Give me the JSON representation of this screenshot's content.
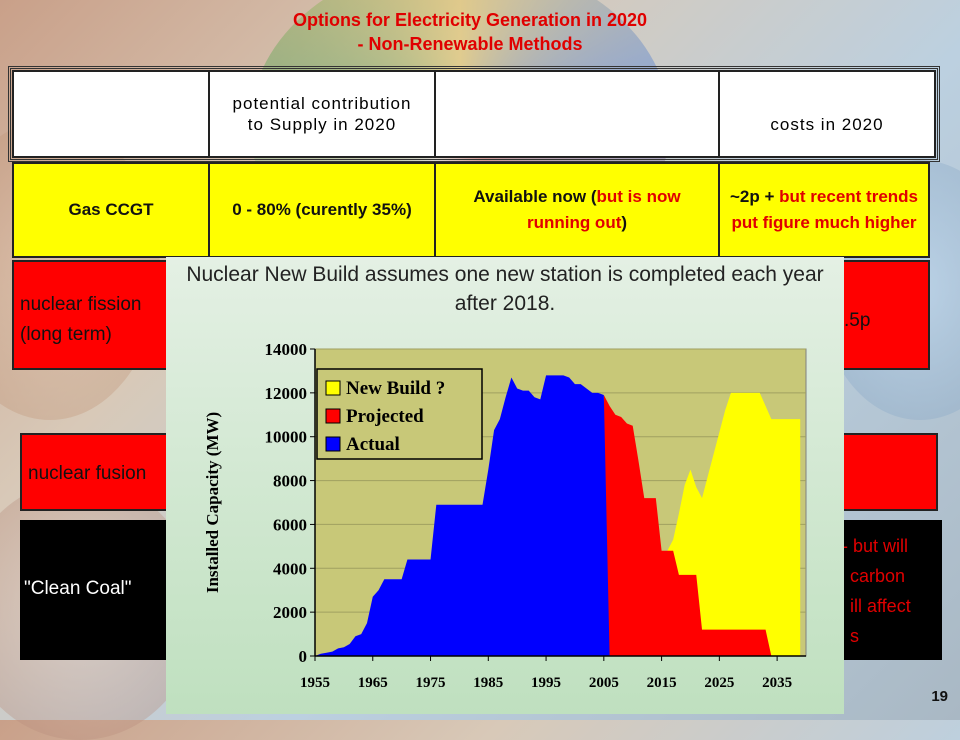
{
  "slide": {
    "title_line1": "Options for Electricity Generation in 2020",
    "title_line2": "- Non-Renewable Methods",
    "page_number": "19"
  },
  "table": {
    "header_col2": "potential contribution to Supply in 2020",
    "header_col4": "costs in 2020",
    "gas": {
      "label": "Gas CCGT",
      "contribution": "0 - 80% (curently 35%)",
      "availability_a": "Available now (",
      "availability_b": "but is now running out",
      "availability_c": ")",
      "cost_a": "~2p + ",
      "cost_b": "but recent trends put figure much higher"
    },
    "fission": {
      "label_1": "nuclear fission",
      "label_2": "(long term)",
      "cost_fragment": ".5p"
    },
    "fusion": {
      "label": "nuclear fusion"
    },
    "coal": {
      "label": "\"Clean Coal\"",
      "note_1": "- but will",
      "note_2": "carbon",
      "note_3": "ill affect",
      "note_4": "s"
    }
  },
  "overlay": {
    "caption": "Nuclear New Build assumes one new station is completed each year after 2018."
  },
  "chart_data": {
    "type": "area",
    "title": "",
    "xlabel": "",
    "ylabel": "Installed Capacity (MW)",
    "xlim": [
      1955,
      2040
    ],
    "ylim": [
      0,
      14000
    ],
    "x_ticks": [
      1955,
      1965,
      1975,
      1985,
      1995,
      2005,
      2015,
      2025,
      2035
    ],
    "y_ticks": [
      0,
      2000,
      4000,
      6000,
      8000,
      10000,
      12000,
      14000
    ],
    "legend_position": "top-left",
    "series": [
      {
        "name": "New Build ?",
        "color": "#ffff00",
        "points": [
          [
            2016,
            4800
          ],
          [
            2017,
            5300
          ],
          [
            2018,
            6500
          ],
          [
            2019,
            7800
          ],
          [
            2020,
            8500
          ],
          [
            2021,
            7700
          ],
          [
            2022,
            7200
          ],
          [
            2023,
            8200
          ],
          [
            2024,
            9200
          ],
          [
            2025,
            10200
          ],
          [
            2026,
            11200
          ],
          [
            2027,
            12000
          ],
          [
            2028,
            12000
          ],
          [
            2029,
            12000
          ],
          [
            2030,
            12000
          ],
          [
            2031,
            12000
          ],
          [
            2032,
            12000
          ],
          [
            2033,
            11400
          ],
          [
            2034,
            10800
          ],
          [
            2035,
            10800
          ],
          [
            2036,
            10800
          ],
          [
            2037,
            10800
          ],
          [
            2038,
            10800
          ],
          [
            2039,
            10800
          ]
        ]
      },
      {
        "name": "Projected",
        "color": "#ff0000",
        "points": [
          [
            2005,
            11900
          ],
          [
            2006,
            11400
          ],
          [
            2007,
            11000
          ],
          [
            2008,
            10900
          ],
          [
            2009,
            10600
          ],
          [
            2010,
            10500
          ],
          [
            2011,
            8900
          ],
          [
            2012,
            7200
          ],
          [
            2013,
            7200
          ],
          [
            2014,
            7200
          ],
          [
            2015,
            4800
          ],
          [
            2016,
            4800
          ],
          [
            2017,
            4800
          ],
          [
            2018,
            3700
          ],
          [
            2019,
            3700
          ],
          [
            2020,
            3700
          ],
          [
            2021,
            3700
          ],
          [
            2022,
            1200
          ],
          [
            2023,
            1200
          ],
          [
            2024,
            1200
          ],
          [
            2025,
            1200
          ],
          [
            2026,
            1200
          ],
          [
            2027,
            1200
          ],
          [
            2028,
            1200
          ],
          [
            2029,
            1200
          ],
          [
            2030,
            1200
          ],
          [
            2031,
            1200
          ],
          [
            2032,
            1200
          ],
          [
            2033,
            1200
          ],
          [
            2034,
            0
          ]
        ]
      },
      {
        "name": "Actual",
        "color": "#0000ff",
        "points": [
          [
            1955,
            0
          ],
          [
            1956,
            100
          ],
          [
            1957,
            150
          ],
          [
            1958,
            200
          ],
          [
            1959,
            350
          ],
          [
            1960,
            400
          ],
          [
            1961,
            550
          ],
          [
            1962,
            900
          ],
          [
            1963,
            1000
          ],
          [
            1964,
            1500
          ],
          [
            1965,
            2700
          ],
          [
            1966,
            3000
          ],
          [
            1967,
            3500
          ],
          [
            1968,
            3500
          ],
          [
            1969,
            3500
          ],
          [
            1970,
            3500
          ],
          [
            1971,
            4400
          ],
          [
            1972,
            4400
          ],
          [
            1973,
            4400
          ],
          [
            1974,
            4400
          ],
          [
            1975,
            4400
          ],
          [
            1976,
            6900
          ],
          [
            1977,
            6900
          ],
          [
            1978,
            6900
          ],
          [
            1979,
            6900
          ],
          [
            1980,
            6900
          ],
          [
            1981,
            6900
          ],
          [
            1982,
            6900
          ],
          [
            1983,
            6900
          ],
          [
            1984,
            6900
          ],
          [
            1985,
            8500
          ],
          [
            1986,
            10300
          ],
          [
            1987,
            10800
          ],
          [
            1988,
            11800
          ],
          [
            1989,
            12700
          ],
          [
            1990,
            12200
          ],
          [
            1991,
            12100
          ],
          [
            1992,
            12100
          ],
          [
            1993,
            11800
          ],
          [
            1994,
            11700
          ],
          [
            1995,
            12800
          ],
          [
            1996,
            12800
          ],
          [
            1997,
            12800
          ],
          [
            1998,
            12800
          ],
          [
            1999,
            12700
          ],
          [
            2000,
            12400
          ],
          [
            2001,
            12400
          ],
          [
            2002,
            12200
          ],
          [
            2003,
            12000
          ],
          [
            2004,
            12000
          ],
          [
            2005,
            11900
          ],
          [
            2006,
            0
          ]
        ]
      }
    ]
  }
}
